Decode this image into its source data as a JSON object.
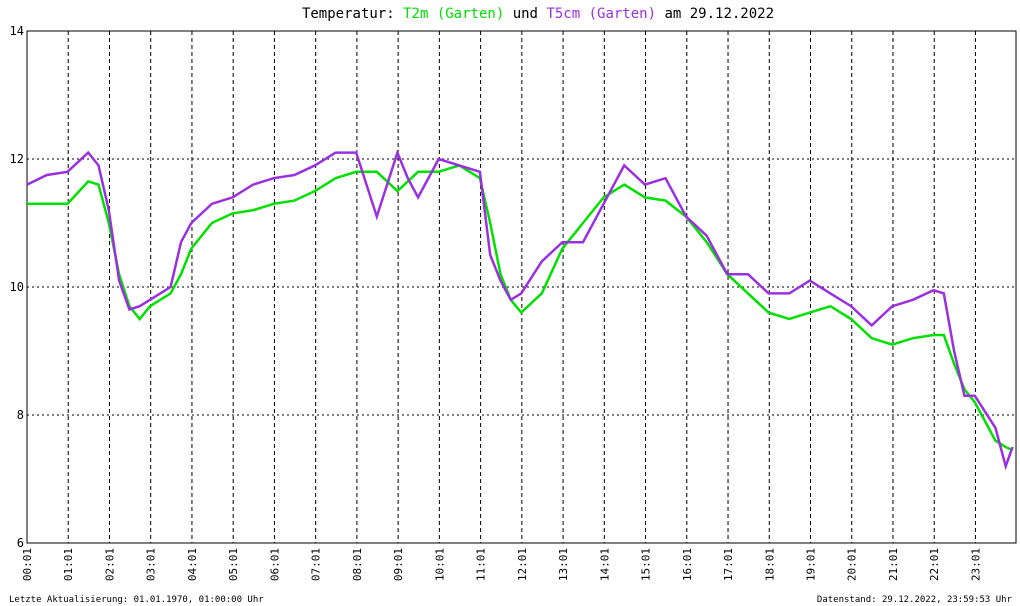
{
  "chart_data": {
    "type": "line",
    "title_prefix": "Temperatur:",
    "title_join": "und",
    "title_suffix": "am 29.12.2022",
    "x": [
      1,
      30,
      60,
      90,
      105,
      120,
      135,
      150,
      165,
      180,
      210,
      225,
      240,
      270,
      300,
      330,
      360,
      390,
      420,
      450,
      480,
      510,
      540,
      555,
      570,
      600,
      630,
      660,
      675,
      690,
      705,
      720,
      750,
      780,
      810,
      840,
      870,
      900,
      930,
      960,
      990,
      1020,
      1050,
      1080,
      1110,
      1140,
      1170,
      1200,
      1230,
      1260,
      1290,
      1320,
      1335,
      1350,
      1365,
      1380,
      1410,
      1425,
      1435
    ],
    "series": [
      {
        "name": "T2m (Garten)",
        "color": "#00e000",
        "values": [
          11.3,
          11.3,
          11.3,
          11.65,
          11.6,
          11.0,
          10.2,
          9.7,
          9.5,
          9.7,
          9.9,
          10.2,
          10.6,
          11.0,
          11.15,
          11.2,
          11.3,
          11.35,
          11.5,
          11.7,
          11.8,
          11.8,
          11.5,
          11.65,
          11.8,
          11.8,
          11.9,
          11.7,
          11.0,
          10.2,
          9.8,
          9.6,
          9.9,
          10.6,
          11.0,
          11.4,
          11.6,
          11.4,
          11.35,
          11.1,
          10.7,
          10.2,
          9.9,
          9.6,
          9.5,
          9.6,
          9.7,
          9.5,
          9.2,
          9.1,
          9.2,
          9.25,
          9.25,
          8.8,
          8.4,
          8.2,
          7.6,
          7.5,
          7.45
        ]
      },
      {
        "name": "T5cm (Garten)",
        "color": "#9a30e0",
        "values": [
          11.6,
          11.75,
          11.8,
          12.1,
          11.9,
          11.2,
          10.1,
          9.65,
          9.7,
          9.8,
          10.0,
          10.7,
          11.0,
          11.3,
          11.4,
          11.6,
          11.7,
          11.75,
          11.9,
          12.1,
          12.1,
          11.1,
          12.1,
          11.7,
          11.4,
          12.0,
          11.9,
          11.8,
          10.5,
          10.1,
          9.8,
          9.9,
          10.4,
          10.7,
          10.7,
          11.3,
          11.9,
          11.6,
          11.7,
          11.1,
          10.8,
          10.2,
          10.2,
          9.9,
          9.9,
          10.1,
          9.9,
          9.7,
          9.4,
          9.7,
          9.8,
          9.95,
          9.9,
          9.0,
          8.3,
          8.3,
          7.8,
          7.2,
          7.5
        ]
      }
    ],
    "xlim": [
      1,
      1440
    ],
    "xticks": [
      {
        "value": 1,
        "label": "00:01"
      },
      {
        "value": 61,
        "label": "01:01"
      },
      {
        "value": 121,
        "label": "02:01"
      },
      {
        "value": 181,
        "label": "03:01"
      },
      {
        "value": 241,
        "label": "04:01"
      },
      {
        "value": 301,
        "label": "05:01"
      },
      {
        "value": 361,
        "label": "06:01"
      },
      {
        "value": 421,
        "label": "07:01"
      },
      {
        "value": 481,
        "label": "08:01"
      },
      {
        "value": 541,
        "label": "09:01"
      },
      {
        "value": 601,
        "label": "10:01"
      },
      {
        "value": 661,
        "label": "11:01"
      },
      {
        "value": 721,
        "label": "12:01"
      },
      {
        "value": 781,
        "label": "13:01"
      },
      {
        "value": 841,
        "label": "14:01"
      },
      {
        "value": 901,
        "label": "15:01"
      },
      {
        "value": 961,
        "label": "16:01"
      },
      {
        "value": 1021,
        "label": "17:01"
      },
      {
        "value": 1081,
        "label": "18:01"
      },
      {
        "value": 1141,
        "label": "19:01"
      },
      {
        "value": 1201,
        "label": "20:01"
      },
      {
        "value": 1261,
        "label": "21:01"
      },
      {
        "value": 1321,
        "label": "22:01"
      },
      {
        "value": 1381,
        "label": "23:01"
      }
    ],
    "ylim": [
      6,
      14
    ],
    "yticks": [
      6,
      8,
      10,
      12,
      14
    ],
    "grid": true,
    "footer_left": "Letzte Aktualisierung: 01.01.1970, 01:00:00 Uhr",
    "footer_right": "Datenstand: 29.12.2022, 23:59:53 Uhr"
  }
}
